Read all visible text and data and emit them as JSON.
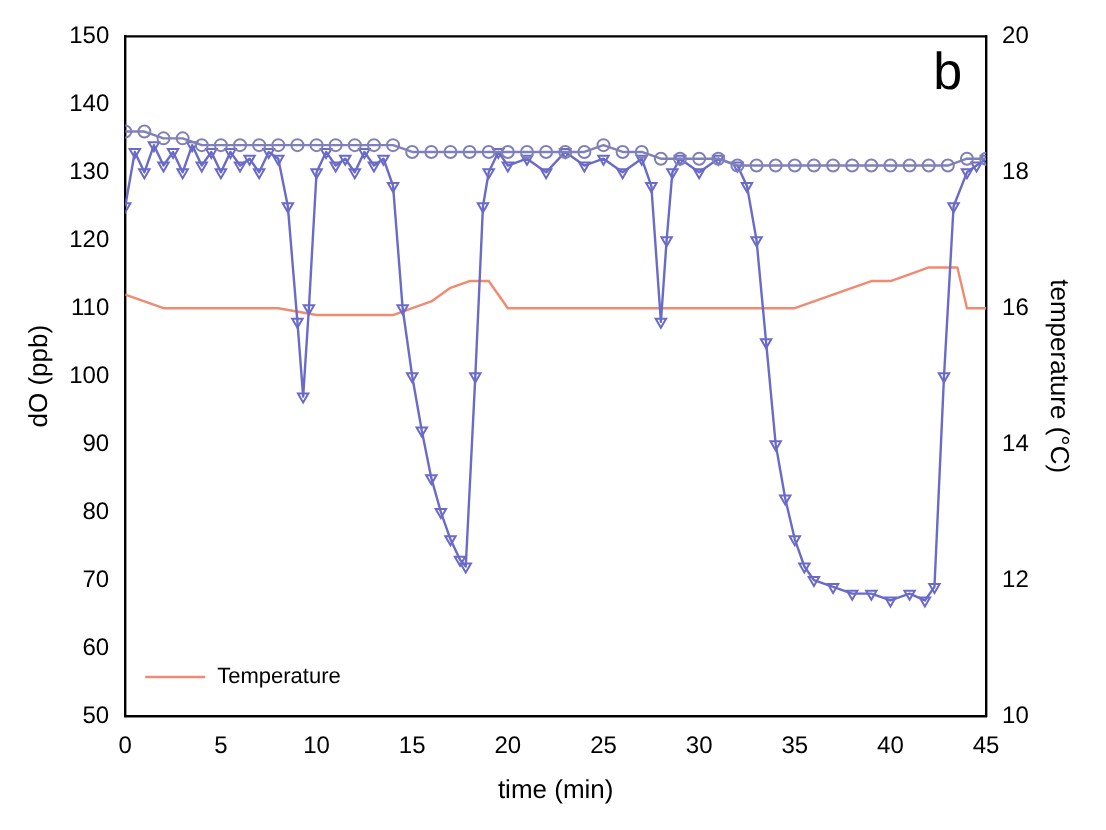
{
  "chart_data": {
    "type": "line",
    "xlabel": "time (min)",
    "ylabel": "dO (ppb)",
    "y2label": "temperature (°C)",
    "annotations": [
      "b"
    ],
    "xlim": [
      0,
      45
    ],
    "xticks": [
      0,
      5,
      10,
      15,
      20,
      25,
      30,
      35,
      40,
      45
    ],
    "ylim": [
      50,
      150
    ],
    "yticks": [
      50,
      60,
      70,
      80,
      90,
      100,
      110,
      120,
      130,
      140,
      150
    ],
    "y2lim": [
      10,
      20
    ],
    "y2ticks": [
      10,
      12,
      14,
      16,
      18,
      20
    ],
    "grid": false,
    "legend": "bottom left",
    "line_style": "solid",
    "series": [
      {
        "color": "#8080b8",
        "marker": "circle",
        "x": [
          0,
          1,
          2,
          3,
          4,
          5,
          6,
          7,
          8,
          9,
          10,
          11,
          12,
          13,
          14,
          15,
          16,
          17,
          18,
          19,
          20,
          21,
          22,
          23,
          24,
          25,
          26,
          27,
          28,
          29,
          30,
          31,
          32,
          33,
          34,
          35,
          36,
          37,
          38,
          39,
          40,
          41,
          42,
          43,
          44,
          45
        ],
        "values": [
          136,
          136,
          135,
          135,
          134,
          134,
          134,
          134,
          134,
          134,
          134,
          134,
          134,
          134,
          134,
          133,
          133,
          133,
          133,
          133,
          133,
          133,
          133,
          133,
          133,
          134,
          133,
          133,
          132,
          132,
          132,
          132,
          131,
          131,
          131,
          131,
          131,
          131,
          131,
          131,
          131,
          131,
          131,
          131,
          132,
          132
        ]
      },
      {
        "color": "#6a6ac8",
        "marker": "triangle",
        "x": [
          0,
          0.5,
          1,
          1.5,
          2,
          2.5,
          3,
          3.5,
          4,
          4.5,
          5,
          5.5,
          6,
          6.5,
          7,
          7.5,
          8,
          8.5,
          9,
          9.3,
          9.6,
          10,
          10.5,
          11,
          11.5,
          12,
          12.5,
          13,
          13.5,
          14,
          14.5,
          15,
          15.5,
          16,
          16.5,
          17,
          17.5,
          17.8,
          18.3,
          18.7,
          19,
          19.5,
          20,
          21,
          22,
          23,
          24,
          25,
          26,
          27,
          27.5,
          28,
          28.3,
          28.6,
          29,
          30,
          31,
          32,
          32.5,
          33,
          33.5,
          34,
          34.5,
          35,
          35.5,
          36,
          37,
          38,
          39,
          40,
          41,
          41.8,
          42.3,
          42.8,
          43.3,
          44,
          44.5,
          45
        ],
        "values": [
          125,
          133,
          130,
          134,
          131,
          133,
          130,
          134,
          131,
          133,
          130,
          133,
          131,
          132,
          130,
          133,
          132,
          125,
          108,
          97,
          110,
          130,
          133,
          131,
          132,
          130,
          133,
          131,
          132,
          128,
          110,
          100,
          92,
          85,
          80,
          76,
          73,
          72,
          100,
          125,
          130,
          133,
          131,
          132,
          130,
          133,
          131,
          132,
          130,
          132,
          128,
          108,
          120,
          130,
          132,
          130,
          132,
          131,
          128,
          120,
          105,
          90,
          82,
          76,
          72,
          70,
          69,
          68,
          68,
          67,
          68,
          67,
          69,
          100,
          125,
          130,
          131,
          132
        ]
      },
      {
        "name": "Temperature",
        "color": "#f08a70",
        "marker": "none",
        "axis": "y2",
        "x": [
          0,
          1,
          2,
          4,
          6,
          8,
          10,
          12,
          14,
          15,
          16,
          17,
          18,
          19,
          20,
          22,
          25,
          30,
          35,
          36,
          37,
          38,
          39,
          40,
          41,
          42,
          43,
          43.5,
          44,
          45
        ],
        "values": [
          16.2,
          16.1,
          16.0,
          16.0,
          16.0,
          16.0,
          15.9,
          15.9,
          15.9,
          16.0,
          16.1,
          16.3,
          16.4,
          16.4,
          16.0,
          16.0,
          16.0,
          16.0,
          16.0,
          16.1,
          16.2,
          16.3,
          16.4,
          16.4,
          16.5,
          16.6,
          16.6,
          16.6,
          16.0,
          16.0
        ]
      }
    ]
  }
}
